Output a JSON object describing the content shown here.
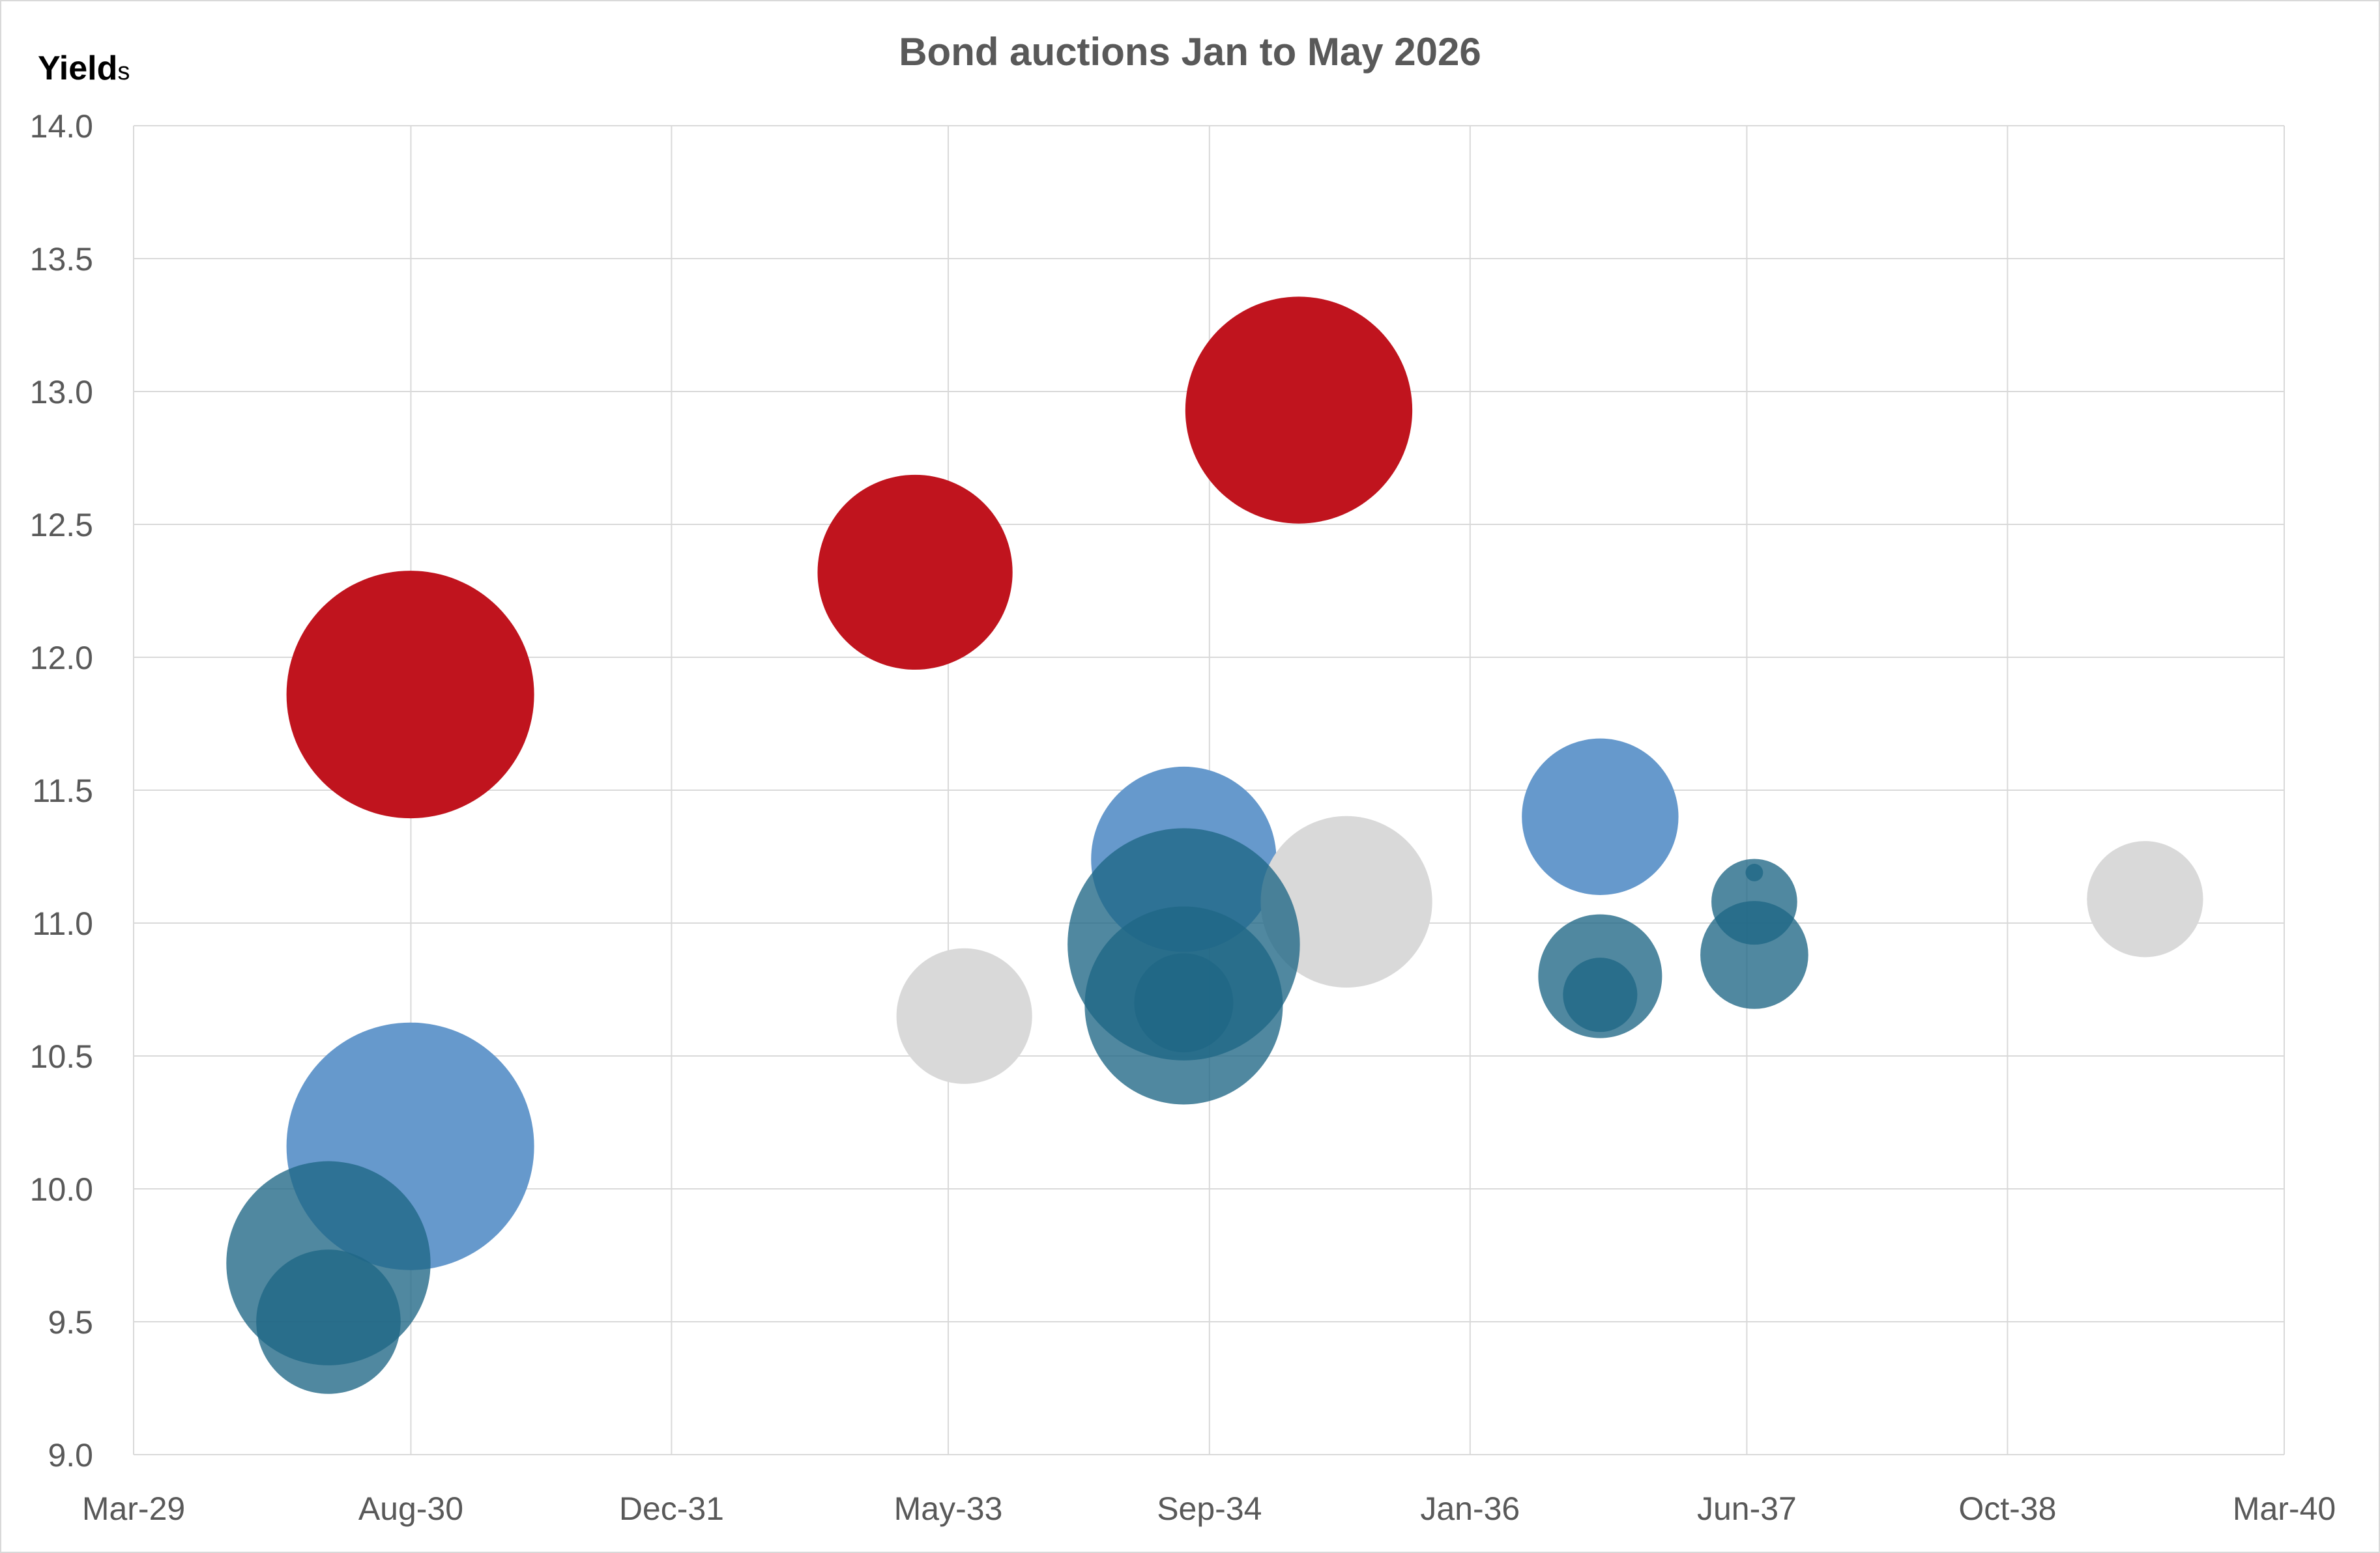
{
  "chart_data": {
    "type": "scatter",
    "subtype": "bubble",
    "title": "Bond auctions Jan to May 2026",
    "ylabel": "Yields",
    "xlabel": "",
    "x_ticks": [
      "Mar-29",
      "Aug-30",
      "Dec-31",
      "May-33",
      "Sep-34",
      "Jan-36",
      "Jun-37",
      "Oct-38",
      "Mar-40"
    ],
    "x_tick_dates": [
      "2029-03-01",
      "2030-08-01",
      "2031-12-01",
      "2033-05-01",
      "2034-09-01",
      "2036-01-01",
      "2037-06-01",
      "2038-10-01",
      "2040-03-01"
    ],
    "ylim": [
      9.0,
      14.0
    ],
    "y_ticks": [
      "9.0",
      "9.5",
      "10.0",
      "10.5",
      "11.0",
      "11.5",
      "12.0",
      "12.5",
      "13.0",
      "13.5",
      "14.0"
    ],
    "grid": true,
    "legend": "none",
    "series": [
      {
        "color": "#C0141E",
        "opacity": 1,
        "points": [
          {
            "x": "2030-07-31",
            "y": 11.86,
            "size": 1.0
          },
          {
            "x": "2033-02-28",
            "y": 12.32,
            "size": 0.62
          },
          {
            "x": "2035-02-15",
            "y": 12.93,
            "size": 0.84
          }
        ]
      },
      {
        "color": "#6699CC",
        "opacity": 1,
        "points": [
          {
            "x": "2030-07-31",
            "y": 10.16,
            "size": 1.0
          },
          {
            "x": "2034-07-15",
            "y": 11.24,
            "size": 0.56
          },
          {
            "x": "2036-08-31",
            "y": 11.4,
            "size": 0.4
          }
        ]
      },
      {
        "color": "#D9D9D9",
        "opacity": 1,
        "points": [
          {
            "x": "2033-05-31",
            "y": 10.65,
            "size": 0.3
          },
          {
            "x": "2035-05-15",
            "y": 11.08,
            "size": 0.48
          },
          {
            "x": "2039-06-15",
            "y": 11.09,
            "size": 0.22
          }
        ]
      },
      {
        "color": "#1F6685",
        "opacity": 0.78,
        "points": [
          {
            "x": "2030-02-28",
            "y": 9.72,
            "size": 0.68
          },
          {
            "x": "2030-02-28",
            "y": 9.5,
            "size": 0.34
          },
          {
            "x": "2034-07-15",
            "y": 10.92,
            "size": 0.88
          },
          {
            "x": "2034-07-15",
            "y": 10.69,
            "size": 0.64
          },
          {
            "x": "2034-07-15",
            "y": 10.7,
            "size": 0.16
          },
          {
            "x": "2036-08-31",
            "y": 10.8,
            "size": 0.25
          },
          {
            "x": "2036-08-31",
            "y": 10.73,
            "size": 0.09
          },
          {
            "x": "2037-06-15",
            "y": 11.08,
            "size": 0.12
          },
          {
            "x": "2037-06-15",
            "y": 10.88,
            "size": 0.19
          },
          {
            "x": "2037-06-15",
            "y": 11.19,
            "size": 0.005
          }
        ]
      }
    ]
  }
}
